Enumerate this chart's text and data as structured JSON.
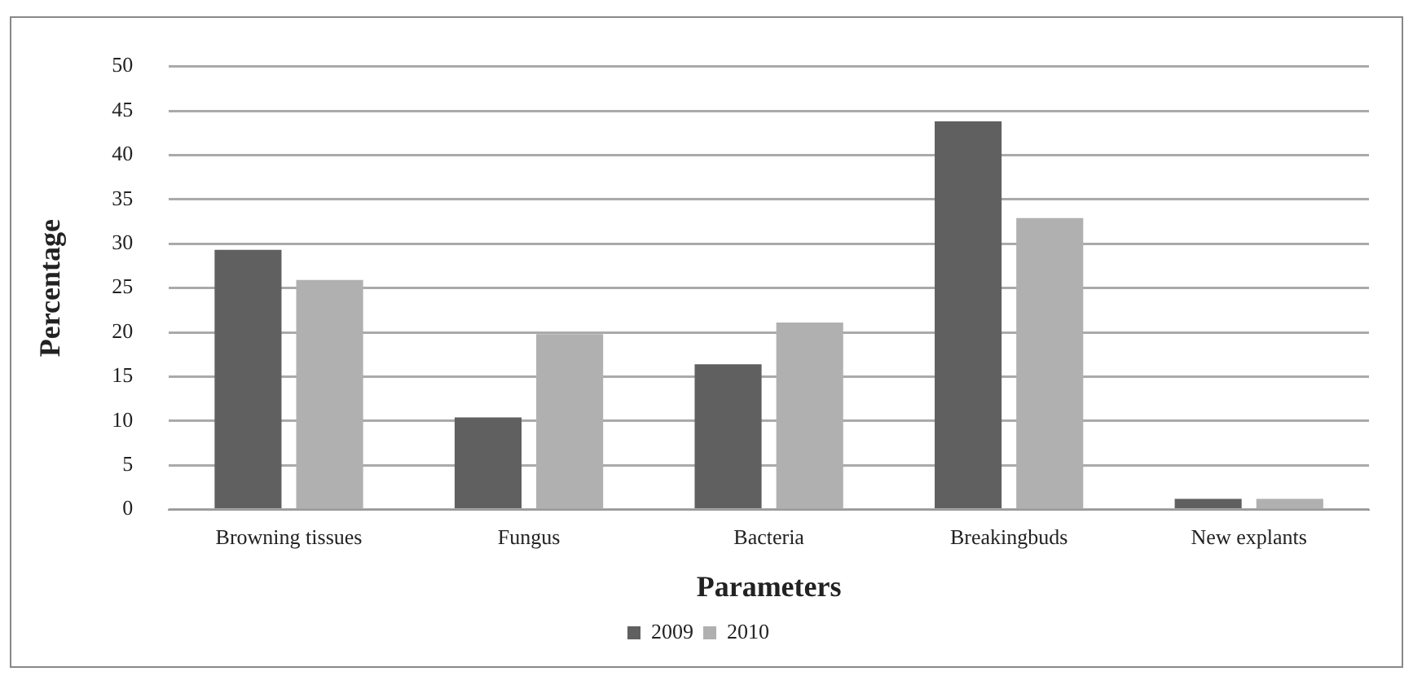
{
  "chart_data": {
    "type": "bar",
    "xlabel": "Parameters",
    "ylabel": "Percentage",
    "categories": [
      "Browning tissues",
      "Fungus",
      "Bacteria",
      "Breakingbuds",
      "New explants"
    ],
    "series": [
      {
        "name": "2009",
        "color": "#606060",
        "values": [
          29.3,
          10.4,
          16.4,
          43.8,
          1.2
        ]
      },
      {
        "name": "2010",
        "color": "#b0b0b0",
        "values": [
          25.9,
          19.8,
          21.1,
          32.9,
          1.2
        ]
      }
    ],
    "ylim": [
      0,
      50
    ],
    "yticks": [
      0,
      5,
      10,
      15,
      20,
      25,
      30,
      35,
      40,
      45,
      50
    ],
    "grid": "y",
    "legend": "bottom"
  }
}
